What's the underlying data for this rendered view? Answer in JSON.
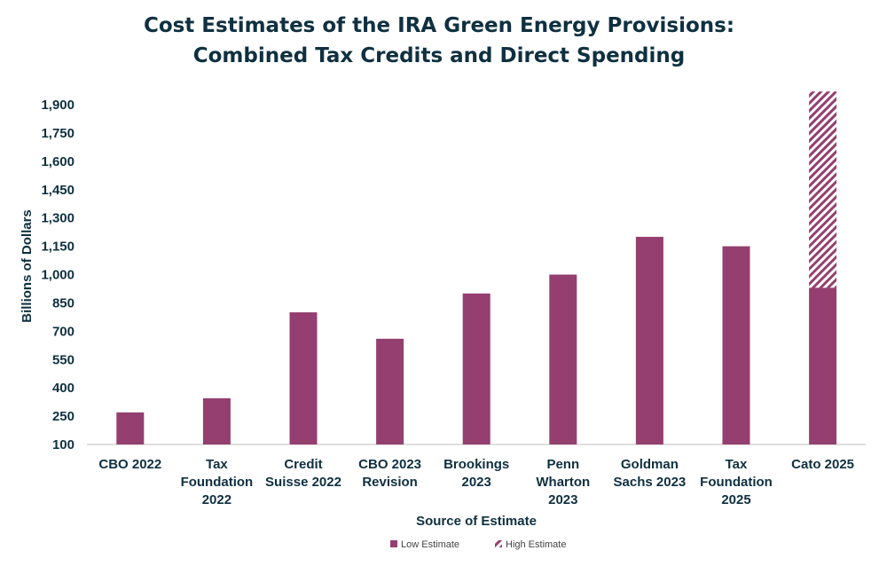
{
  "chart_data": {
    "type": "bar",
    "title": [
      "Cost Estimates of the IRA Green Energy Provisions:",
      "Combined Tax Credits and Direct Spending"
    ],
    "xlabel": "Source of Estimate",
    "ylabel": "Billions of Dollars",
    "ylim": [
      100,
      1900
    ],
    "yticks": [
      "100",
      "250",
      "400",
      "550",
      "700",
      "850",
      "1,000",
      "1,150",
      "1,300",
      "1,450",
      "1,600",
      "1,750",
      "1,900"
    ],
    "ytick_values": [
      100,
      250,
      400,
      550,
      700,
      850,
      1000,
      1150,
      1300,
      1450,
      1600,
      1750,
      1900
    ],
    "grid": false,
    "legend_position": "bottom",
    "categories": [
      [
        "CBO 2022"
      ],
      [
        "Tax",
        "Foundation",
        "2022"
      ],
      [
        "Credit",
        "Suisse 2022"
      ],
      [
        "CBO 2023",
        "Revision"
      ],
      [
        "Brookings",
        "2023"
      ],
      [
        "Penn",
        "Wharton",
        "2023"
      ],
      [
        "Goldman",
        "Sachs 2023"
      ],
      [
        "Tax",
        "Foundation",
        "2025"
      ],
      [
        "Cato 2025"
      ]
    ],
    "series": [
      {
        "name": "Low Estimate",
        "values": [
          270,
          345,
          800,
          660,
          900,
          1000,
          1200,
          1150,
          930
        ],
        "color": "#943f6f",
        "style": "solid"
      },
      {
        "name": "High Estimate",
        "values": [
          null,
          null,
          null,
          null,
          null,
          null,
          null,
          null,
          1970
        ],
        "color": "#943f6f",
        "style": "hatched"
      }
    ]
  }
}
